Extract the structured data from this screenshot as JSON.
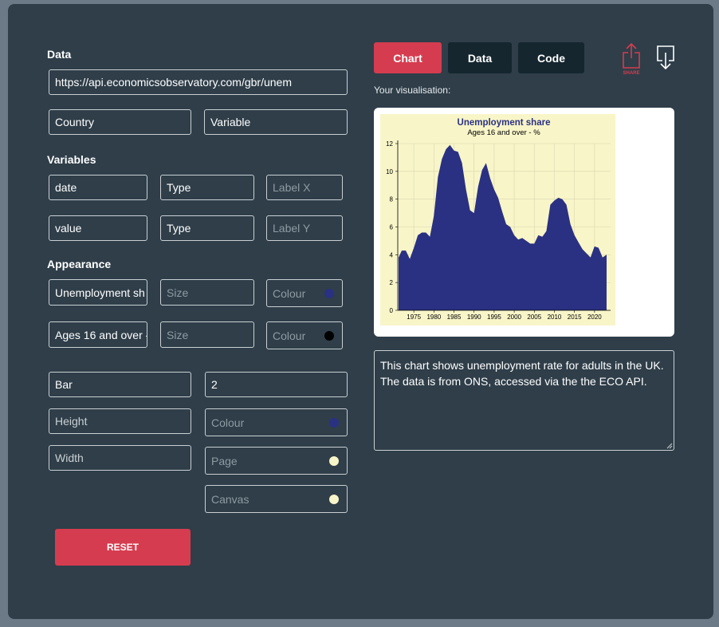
{
  "data_section": {
    "label": "Data",
    "url_value": "https://api.economicsobservatory.com/gbr/unem",
    "country_placeholder": "Country",
    "variable_placeholder": "Variable"
  },
  "variables_section": {
    "label": "Variables",
    "x_value": "date",
    "x_type_placeholder": "Type",
    "x_label_placeholder": "Label X",
    "y_value": "value",
    "y_type_placeholder": "Type",
    "y_label_placeholder": "Label Y"
  },
  "appearance_section": {
    "label": "Appearance",
    "title_value": "Unemployment sh",
    "title_size_placeholder": "Size",
    "title_colour_placeholder": "Colour",
    "title_colour": "#2a3182",
    "subtitle_value": "Ages 16 and over -",
    "subtitle_size_placeholder": "Size",
    "subtitle_colour_placeholder": "Colour",
    "subtitle_colour": "#000000",
    "chart_type_value": "Bar",
    "bar_width_value": "2",
    "height_placeholder": "Height",
    "bar_colour_placeholder": "Colour",
    "bar_colour": "#2a3182",
    "width_placeholder": "Width",
    "page_colour_placeholder": "Page",
    "page_colour": "#f8f5c8",
    "canvas_colour_placeholder": "Canvas",
    "canvas_colour": "#f8f5c8"
  },
  "reset_label": "RESET",
  "tabs": {
    "chart": "Chart",
    "data": "Data",
    "code": "Code"
  },
  "share_label": "SHARE",
  "visualisation_label": "Your visualisation:",
  "description": "This chart shows unemployment rate for adults in the UK. The data is from ONS, accessed via the the ECO API.",
  "colors": {
    "accent": "#d63c4f",
    "panel": "#2f3e49",
    "tab_inactive": "#15262f"
  },
  "chart_data": {
    "type": "area",
    "title": "Unemployment share",
    "subtitle": "Ages 16 and over - %",
    "xlabel": "",
    "ylabel": "",
    "xlim": [
      1971,
      2024
    ],
    "ylim": [
      0,
      12
    ],
    "yticks": [
      0,
      2,
      4,
      6,
      8,
      10,
      12
    ],
    "xticks": [
      1975,
      1980,
      1985,
      1990,
      1995,
      2000,
      2005,
      2010,
      2015,
      2020
    ],
    "grid": true,
    "x": [
      1971.2,
      1972,
      1973,
      1974,
      1975,
      1976,
      1977,
      1978,
      1979,
      1980,
      1981,
      1982,
      1983,
      1984,
      1985,
      1986,
      1987,
      1988,
      1989,
      1990,
      1991,
      1992,
      1993,
      1994,
      1995,
      1996,
      1997,
      1998,
      1999,
      2000,
      2001,
      2002,
      2003,
      2004,
      2005,
      2006,
      2007,
      2008,
      2009,
      2010,
      2011,
      2012,
      2013,
      2014,
      2015,
      2016,
      2017,
      2018,
      2019,
      2020,
      2021,
      2022,
      2023
    ],
    "values": [
      3.8,
      4.3,
      4.3,
      3.7,
      4.5,
      5.4,
      5.6,
      5.6,
      5.3,
      6.8,
      9.6,
      10.9,
      11.6,
      11.9,
      11.5,
      11.4,
      10.6,
      8.7,
      7.2,
      7.0,
      8.9,
      10.1,
      10.6,
      9.5,
      8.7,
      8.1,
      7.1,
      6.2,
      6.0,
      5.4,
      5.1,
      5.2,
      5.0,
      4.8,
      4.8,
      5.4,
      5.3,
      5.7,
      7.6,
      7.9,
      8.1,
      8.0,
      7.6,
      6.2,
      5.4,
      4.9,
      4.4,
      4.1,
      3.8,
      4.6,
      4.5,
      3.8,
      4.0
    ]
  }
}
